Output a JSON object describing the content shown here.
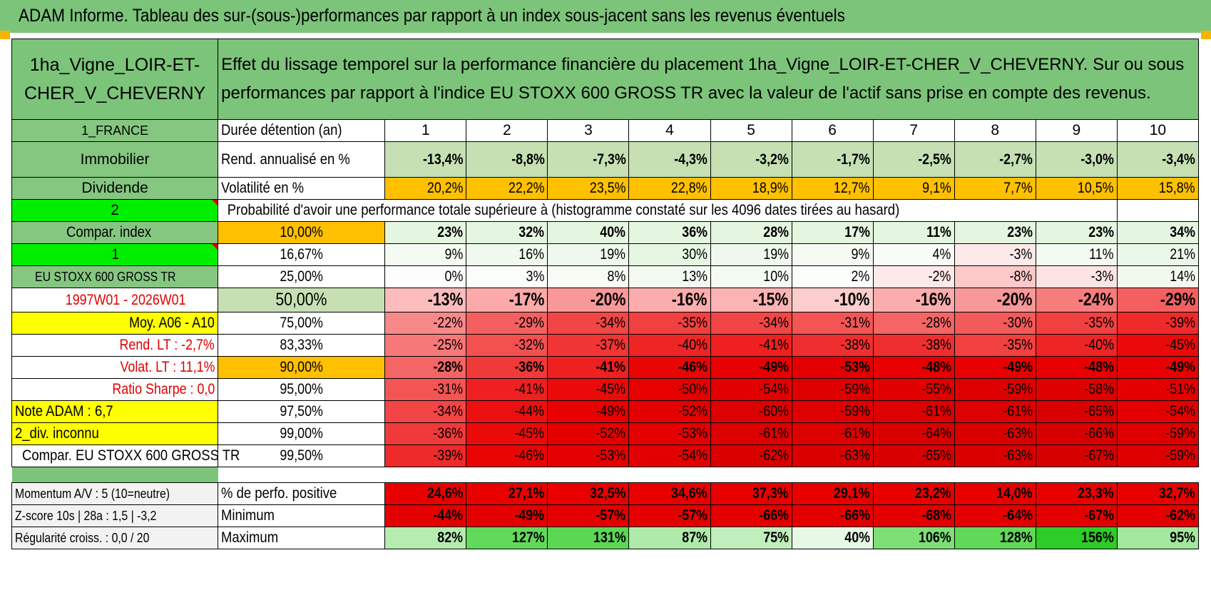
{
  "title": "ADAM Informe. Tableau des sur-(sous-)performances par rapport à un index sous-jacent sans les revenus éventuels",
  "asset_name": "1ha_Vigne_LOIR-ET-CHER_V_CHEVERNY",
  "description": "Effet du lissage temporel sur la performance financière du placement 1ha_Vigne_LOIR-ET-CHER_V_CHEVERNY. Sur ou sous performances par rapport à l'indice EU STOXX 600 GROSS TR avec la valeur de l'actif sans prise en compte des revenus.",
  "left_labels": {
    "country": "1_FRANCE",
    "category": "Immobilier",
    "dividend": "Dividende",
    "num2": "2",
    "compar_index": "Compar. index",
    "num1": "1",
    "index_name": "EU STOXX 600 GROSS TR",
    "period": "1997W01 - 2026W01",
    "moy": "Moy. A06 - A10",
    "rend_lt": "Rend. LT :    -2,7%",
    "volat_lt": "Volat. LT :    11,1%",
    "sharpe": "Ratio Sharpe :     0,0",
    "note": "Note ADAM : 6,7",
    "div": "2_div. inconnu",
    "compar_name": "Compar. EU STOXX 600 GROSS TR"
  },
  "row_labels": {
    "duree": "Durée détention (an)",
    "rend": "Rend. annualisé en %",
    "vol": "Volatilité en %",
    "proba": "Probabilité d'avoir une performance totale supérieure à (histogramme constaté sur les 4096 dates tirées au hasard)"
  },
  "years": [
    "1",
    "2",
    "3",
    "4",
    "5",
    "6",
    "7",
    "8",
    "9",
    "10"
  ],
  "rend": [
    "-13,4%",
    "-8,8%",
    "-7,3%",
    "-4,3%",
    "-3,2%",
    "-1,7%",
    "-2,5%",
    "-2,7%",
    "-3,0%",
    "-3,4%"
  ],
  "vol": [
    "20,2%",
    "22,2%",
    "23,5%",
    "22,8%",
    "18,9%",
    "12,7%",
    "9,1%",
    "7,7%",
    "10,5%",
    "15,8%"
  ],
  "quantiles": [
    {
      "q": "10,00%",
      "values": [
        "23%",
        "32%",
        "40%",
        "36%",
        "28%",
        "17%",
        "11%",
        "23%",
        "23%",
        "34%"
      ],
      "colors": [
        "#e4f5e0",
        "#e4f5e0",
        "#e4f5e0",
        "#e4f5e0",
        "#e4f5e0",
        "#e4f5e0",
        "#e4f5e0",
        "#e4f5e0",
        "#e4f5e0",
        "#e4f5e0"
      ]
    },
    {
      "q": "16,67%",
      "values": [
        "9%",
        "16%",
        "19%",
        "30%",
        "19%",
        "9%",
        "4%",
        "-3%",
        "11%",
        "21%"
      ],
      "colors": [
        "#f5fbf3",
        "#f0f9ee",
        "#eef8ec",
        "#e6f6e3",
        "#eef8ec",
        "#f5fbf3",
        "#f8fcf7",
        "#fde9e9",
        "#f3faf1",
        "#ebf7e8"
      ]
    },
    {
      "q": "25,00%",
      "values": [
        "0%",
        "3%",
        "8%",
        "13%",
        "10%",
        "2%",
        "-2%",
        "-8%",
        "-3%",
        "14%"
      ],
      "colors": [
        "#fdfdfd",
        "#fafdf9",
        "#f6fbf4",
        "#f2f9f0",
        "#f4fbf2",
        "#fbfdfa",
        "#fde9e9",
        "#fcc8c8",
        "#fde4e4",
        "#f1f9ef"
      ]
    },
    {
      "q": "50,00%",
      "values": [
        "-13%",
        "-17%",
        "-20%",
        "-16%",
        "-15%",
        "-10%",
        "-16%",
        "-20%",
        "-24%",
        "-29%"
      ],
      "colors": [
        "#fcbcbc",
        "#fba9a9",
        "#f99898",
        "#fbadad",
        "#fbb3b3",
        "#fccdcd",
        "#fbadad",
        "#f99898",
        "#f77d7d",
        "#f46060"
      ]
    },
    {
      "q": "75,00%",
      "values": [
        "-22%",
        "-29%",
        "-34%",
        "-35%",
        "-34%",
        "-31%",
        "-28%",
        "-30%",
        "-35%",
        "-39%"
      ],
      "colors": [
        "#f88989",
        "#f46060",
        "#f24545",
        "#f14040",
        "#f24545",
        "#f35555",
        "#f46565",
        "#f35a5a",
        "#f14040",
        "#ef2a2a"
      ]
    },
    {
      "q": "83,33%",
      "values": [
        "-25%",
        "-32%",
        "-37%",
        "-40%",
        "-41%",
        "-38%",
        "-38%",
        "-35%",
        "-40%",
        "-45%"
      ],
      "colors": [
        "#f77878",
        "#f35050",
        "#f03535",
        "#ee2525",
        "#ee2020",
        "#ef2f2f",
        "#ef2f2f",
        "#f14040",
        "#ee2525",
        "#eb0a0a"
      ]
    },
    {
      "q": "90,00%",
      "values": [
        "-28%",
        "-36%",
        "-41%",
        "-46%",
        "-49%",
        "-53%",
        "-48%",
        "-49%",
        "-48%",
        "-49%"
      ],
      "colors": [
        "#f46565",
        "#f03a3a",
        "#ee2020",
        "#ea0505",
        "#e80000",
        "#e40000",
        "#e80000",
        "#e80000",
        "#e80000",
        "#e80000"
      ]
    },
    {
      "q": "95,00%",
      "values": [
        "-31%",
        "-41%",
        "-45%",
        "-50%",
        "-54%",
        "-59%",
        "-55%",
        "-59%",
        "-58%",
        "-51%"
      ],
      "colors": [
        "#f35555",
        "#ee2020",
        "#eb0a0a",
        "#e60000",
        "#e20000",
        "#de0000",
        "#e10000",
        "#de0000",
        "#df0000",
        "#e50000"
      ]
    },
    {
      "q": "97,50%",
      "values": [
        "-34%",
        "-44%",
        "-49%",
        "-52%",
        "-60%",
        "-59%",
        "-61%",
        "-61%",
        "-65%",
        "-54%"
      ],
      "colors": [
        "#f24545",
        "#ec1010",
        "#e80000",
        "#e50000",
        "#dd0000",
        "#de0000",
        "#dc0000",
        "#dc0000",
        "#d80000",
        "#e20000"
      ]
    },
    {
      "q": "99,00%",
      "values": [
        "-36%",
        "-45%",
        "-52%",
        "-53%",
        "-61%",
        "-61%",
        "-64%",
        "-63%",
        "-66%",
        "-59%"
      ],
      "colors": [
        "#f03a3a",
        "#eb0a0a",
        "#e50000",
        "#e40000",
        "#dc0000",
        "#dc0000",
        "#d90000",
        "#da0000",
        "#d70000",
        "#de0000"
      ]
    },
    {
      "q": "99,50%",
      "values": [
        "-39%",
        "-46%",
        "-53%",
        "-54%",
        "-62%",
        "-63%",
        "-65%",
        "-63%",
        "-67%",
        "-59%"
      ],
      "colors": [
        "#ef2a2a",
        "#ea0505",
        "#e40000",
        "#e20000",
        "#db0000",
        "#da0000",
        "#d80000",
        "#da0000",
        "#d60000",
        "#de0000"
      ]
    }
  ],
  "bottom_labels": {
    "momentum": "Momentum A/V : 5 (10=neutre)",
    "zscore": "Z-score 10s | 28a : 1,5 | -3,2",
    "regul": "Régularité croiss. : 0,0 / 20",
    "pos": "% de perfo. positive",
    "min": "Minimum",
    "max": "Maximum"
  },
  "pos": [
    "24,6%",
    "27,1%",
    "32,5%",
    "34,6%",
    "37,3%",
    "29,1%",
    "23,2%",
    "14,0%",
    "23,3%",
    "32,7%"
  ],
  "min": [
    "-44%",
    "-49%",
    "-57%",
    "-57%",
    "-66%",
    "-66%",
    "-68%",
    "-64%",
    "-67%",
    "-62%"
  ],
  "max": [
    "82%",
    "127%",
    "131%",
    "87%",
    "75%",
    "40%",
    "106%",
    "128%",
    "156%",
    "95%"
  ],
  "colors": {
    "green_header": "#7cc47a",
    "bright_green": "#00ee00",
    "yellow": "#ffff00",
    "orange": "#ffc000",
    "rend_bg": "#c6e0b4",
    "red_text": "#e00000",
    "pos_bg": "#e80000",
    "min_bg": "#e50000",
    "max_colors": [
      "#b5ecb0",
      "#62d95a",
      "#5cd754",
      "#b0eaab",
      "#c0eebc",
      "#e8f8e6",
      "#7ddf76",
      "#60d858",
      "#2ecc26",
      "#a4e79e"
    ]
  }
}
